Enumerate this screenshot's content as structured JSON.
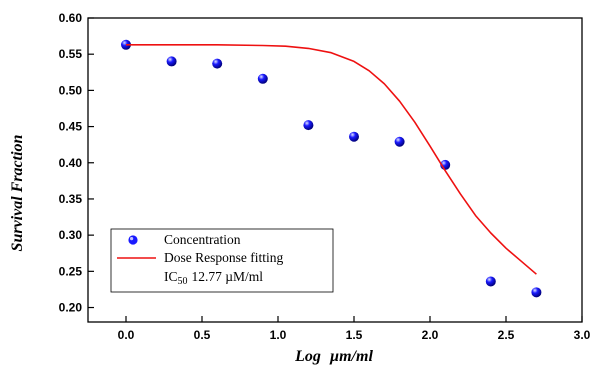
{
  "chart_data": {
    "type": "scatter",
    "xlabel_parts": [
      "Log",
      "µm/ml"
    ],
    "ylabel": "Survival Fraction",
    "xlim": [
      -0.25,
      3.0
    ],
    "ylim": [
      0.18,
      0.6
    ],
    "x_ticks": [
      0.0,
      0.5,
      1.0,
      1.5,
      2.0,
      2.5,
      3.0
    ],
    "x_tick_labels": [
      "0.0",
      "0.5",
      "1.0",
      "1.5",
      "2.0",
      "2.5",
      "3.0"
    ],
    "y_ticks": [
      0.2,
      0.25,
      0.3,
      0.35,
      0.4,
      0.45,
      0.5,
      0.55,
      0.6
    ],
    "y_tick_labels": [
      "0.20",
      "0.25",
      "0.30",
      "0.35",
      "0.40",
      "0.45",
      "0.50",
      "0.55",
      "0.60"
    ],
    "series": [
      {
        "name": "Concentration",
        "kind": "scatter",
        "color": "#1a1aff",
        "x": [
          0.0,
          0.3,
          0.6,
          0.9,
          1.2,
          1.5,
          1.8,
          2.1,
          2.4,
          2.7
        ],
        "y": [
          0.563,
          0.54,
          0.537,
          0.516,
          0.452,
          0.436,
          0.429,
          0.397,
          0.236,
          0.221
        ]
      },
      {
        "name": "Dose Response fitting",
        "kind": "line",
        "color": "#ee1111",
        "x": [
          0.0,
          0.3,
          0.6,
          0.9,
          1.05,
          1.2,
          1.35,
          1.5,
          1.6,
          1.7,
          1.8,
          1.9,
          2.0,
          2.1,
          2.2,
          2.3,
          2.4,
          2.5,
          2.6,
          2.7
        ],
        "y": [
          0.563,
          0.563,
          0.563,
          0.562,
          0.561,
          0.558,
          0.552,
          0.54,
          0.527,
          0.509,
          0.485,
          0.456,
          0.423,
          0.389,
          0.357,
          0.327,
          0.303,
          0.282,
          0.264,
          0.246
        ]
      }
    ],
    "legend": {
      "position": "lower-left",
      "entries": [
        "Concentration",
        "Dose Response fitting"
      ],
      "ic50_prefix": "IC",
      "ic50_sub": "50",
      "ic50_value": "12.77 µM/ml"
    },
    "grid": false
  }
}
